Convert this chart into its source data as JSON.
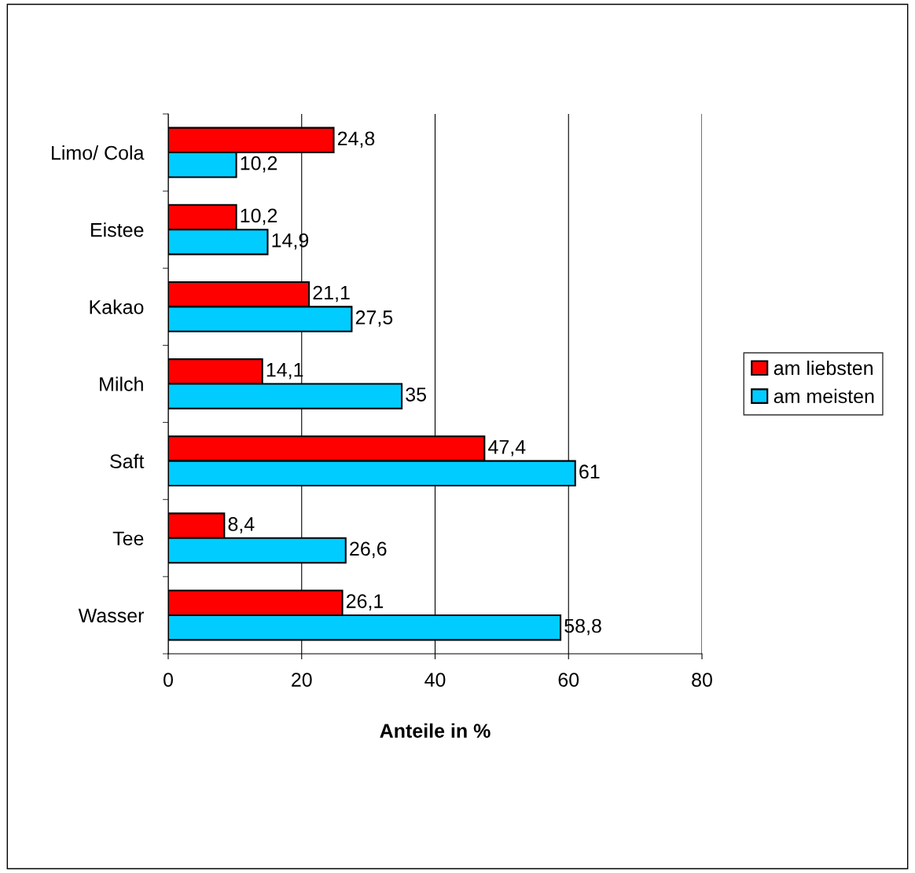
{
  "chart_data": {
    "type": "bar",
    "orientation": "horizontal",
    "xlabel": "Anteile in %",
    "categories": [
      "Limo/ Cola",
      "Eistee",
      "Kakao",
      "Milch",
      "Saft",
      "Tee",
      "Wasser"
    ],
    "series": [
      {
        "name": "am liebsten",
        "color": "#ff0000",
        "values": [
          24.8,
          10.2,
          21.1,
          14.1,
          47.4,
          8.4,
          26.1
        ],
        "value_labels": [
          "24,8",
          "10,2",
          "21,1",
          "14,1",
          "47,4",
          "8,4",
          "26,1"
        ]
      },
      {
        "name": "am meisten",
        "color": "#00ccff",
        "values": [
          10.2,
          14.9,
          27.5,
          35,
          61,
          26.6,
          58.8
        ],
        "value_labels": [
          "10,2",
          "14,9",
          "27,5",
          "35",
          "61",
          "26,6",
          "58,8"
        ]
      }
    ],
    "xlim": [
      0,
      80
    ],
    "xticks": [
      0,
      20,
      40,
      60,
      80
    ],
    "grid": "x",
    "legend": "right"
  }
}
